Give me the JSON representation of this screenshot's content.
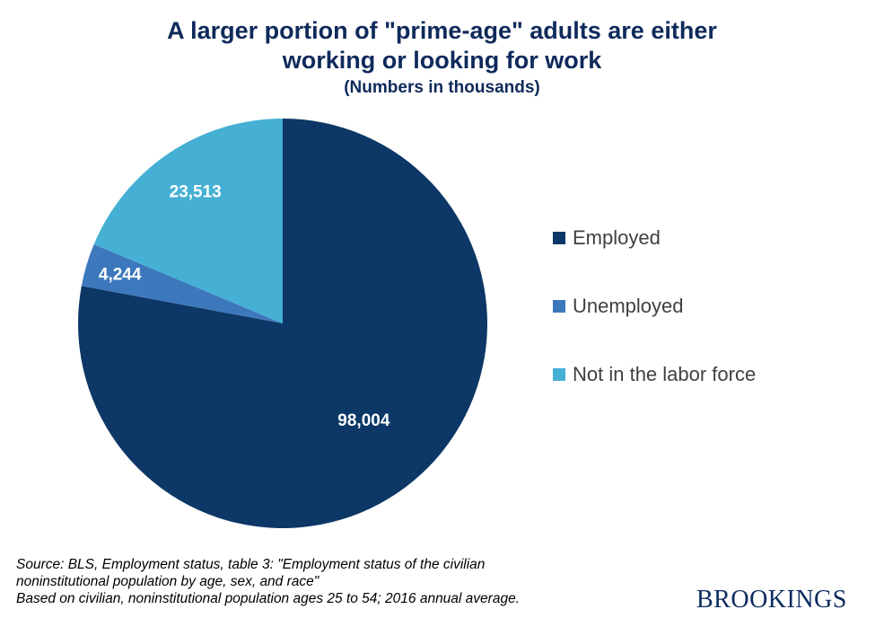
{
  "title": {
    "line1": "A larger portion of \"prime-age\" adults are either",
    "line2": "working or looking for work",
    "subtitle": "(Numbers in thousands)"
  },
  "chart_data": {
    "type": "pie",
    "title": "A larger portion of \"prime-age\" adults are either working or looking for work",
    "subtitle": "(Numbers in thousands)",
    "units": "thousands",
    "start_angle_deg": 0,
    "direction": "clockwise",
    "categories": [
      "Employed",
      "Unemployed",
      "Not in the labor force"
    ],
    "values": [
      98004,
      4244,
      23513
    ],
    "value_labels": [
      "98,004",
      "4,244",
      "23,513"
    ],
    "colors": [
      "#0c3766",
      "#3d78bd",
      "#45b0d4"
    ],
    "legend_position": "right"
  },
  "source": {
    "line1": "Source: BLS, Employment status, table 3: \"Employment status of the civilian",
    "line2": "noninstitutional population by age, sex, and race\"",
    "line3": "Based on civilian, noninstitutional population ages 25 to 54; 2016 annual average."
  },
  "logo_text": "BROOKINGS"
}
